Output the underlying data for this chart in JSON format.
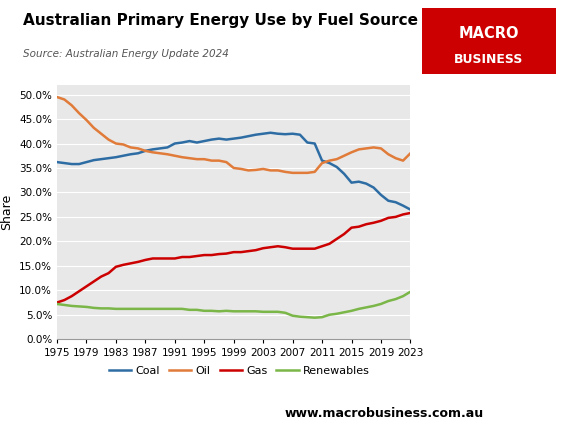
{
  "title": "Australian Primary Energy Use by Fuel Source",
  "source": "Source: Australian Energy Update 2024",
  "ylabel": "Share",
  "website": "www.macrobusiness.com.au",
  "years": [
    1975,
    1976,
    1977,
    1978,
    1979,
    1980,
    1981,
    1982,
    1983,
    1984,
    1985,
    1986,
    1987,
    1988,
    1989,
    1990,
    1991,
    1992,
    1993,
    1994,
    1995,
    1996,
    1997,
    1998,
    1999,
    2000,
    2001,
    2002,
    2003,
    2004,
    2005,
    2006,
    2007,
    2008,
    2009,
    2010,
    2011,
    2012,
    2013,
    2014,
    2015,
    2016,
    2017,
    2018,
    2019,
    2020,
    2021,
    2022,
    2023
  ],
  "coal": [
    0.362,
    0.36,
    0.358,
    0.358,
    0.362,
    0.366,
    0.368,
    0.37,
    0.372,
    0.375,
    0.378,
    0.38,
    0.385,
    0.388,
    0.39,
    0.392,
    0.4,
    0.402,
    0.405,
    0.402,
    0.405,
    0.408,
    0.41,
    0.408,
    0.41,
    0.412,
    0.415,
    0.418,
    0.42,
    0.422,
    0.42,
    0.419,
    0.42,
    0.418,
    0.402,
    0.4,
    0.365,
    0.36,
    0.352,
    0.338,
    0.32,
    0.322,
    0.318,
    0.31,
    0.295,
    0.283,
    0.28,
    0.273,
    0.265
  ],
  "oil": [
    0.495,
    0.49,
    0.478,
    0.462,
    0.448,
    0.432,
    0.42,
    0.408,
    0.4,
    0.398,
    0.392,
    0.39,
    0.385,
    0.382,
    0.38,
    0.378,
    0.375,
    0.372,
    0.37,
    0.368,
    0.368,
    0.365,
    0.365,
    0.362,
    0.35,
    0.348,
    0.345,
    0.346,
    0.348,
    0.345,
    0.345,
    0.342,
    0.34,
    0.34,
    0.34,
    0.342,
    0.36,
    0.365,
    0.368,
    0.375,
    0.382,
    0.388,
    0.39,
    0.392,
    0.39,
    0.378,
    0.37,
    0.365,
    0.38
  ],
  "gas": [
    0.075,
    0.08,
    0.088,
    0.098,
    0.108,
    0.118,
    0.128,
    0.135,
    0.148,
    0.152,
    0.155,
    0.158,
    0.162,
    0.165,
    0.165,
    0.165,
    0.165,
    0.168,
    0.168,
    0.17,
    0.172,
    0.172,
    0.174,
    0.175,
    0.178,
    0.178,
    0.18,
    0.182,
    0.186,
    0.188,
    0.19,
    0.188,
    0.185,
    0.185,
    0.185,
    0.185,
    0.19,
    0.195,
    0.205,
    0.215,
    0.228,
    0.23,
    0.235,
    0.238,
    0.242,
    0.248,
    0.25,
    0.255,
    0.258
  ],
  "renewables": [
    0.072,
    0.07,
    0.068,
    0.067,
    0.066,
    0.064,
    0.063,
    0.063,
    0.062,
    0.062,
    0.062,
    0.062,
    0.062,
    0.062,
    0.062,
    0.062,
    0.062,
    0.062,
    0.06,
    0.06,
    0.058,
    0.058,
    0.057,
    0.058,
    0.057,
    0.057,
    0.057,
    0.057,
    0.056,
    0.056,
    0.056,
    0.054,
    0.048,
    0.046,
    0.045,
    0.044,
    0.045,
    0.05,
    0.052,
    0.055,
    0.058,
    0.062,
    0.065,
    0.068,
    0.072,
    0.078,
    0.082,
    0.088,
    0.097
  ],
  "coal_color": "#2e6da4",
  "oil_color": "#e07b39",
  "gas_color": "#cc0000",
  "renewables_color": "#7ab648",
  "fig_bg_color": "#ffffff",
  "plot_bg_color": "#e8e8e8",
  "macro_red": "#cc0000",
  "ylim": [
    0.0,
    0.52
  ],
  "yticks": [
    0.0,
    0.05,
    0.1,
    0.15,
    0.2,
    0.25,
    0.3,
    0.35,
    0.4,
    0.45,
    0.5
  ],
  "xtick_years": [
    1975,
    1979,
    1983,
    1987,
    1991,
    1995,
    1999,
    2003,
    2007,
    2011,
    2015,
    2019,
    2023
  ]
}
